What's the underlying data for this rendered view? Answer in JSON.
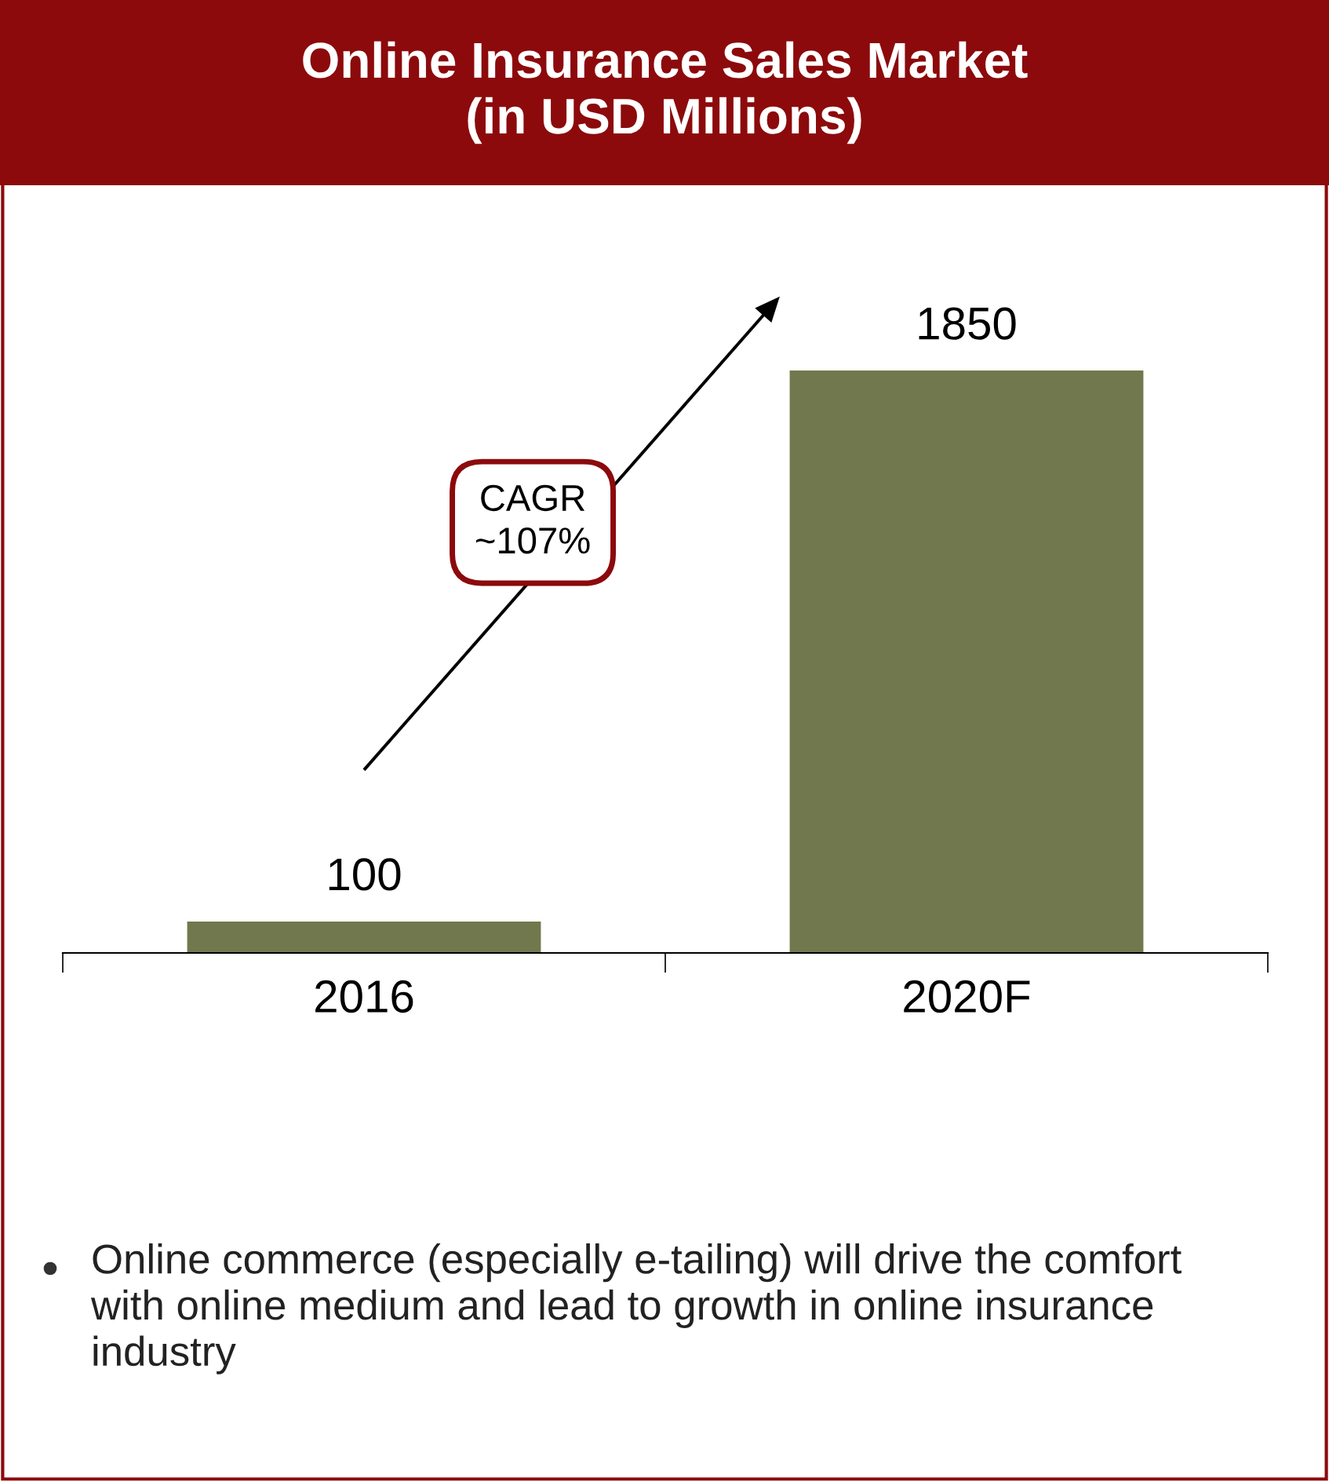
{
  "chart_data": {
    "type": "bar",
    "title": "Online Insurance Sales Market\n(in USD Millions)",
    "categories": [
      "2016",
      "2020F"
    ],
    "values": [
      100,
      1850
    ],
    "color": "#72784d",
    "data_labels": true,
    "grid": false,
    "legend": false,
    "annotations": [
      "CAGR\n~107%",
      "Online commerce (especially e-tailing) will drive the comfort with online medium and lead to growth in online insurance industry"
    ]
  }
}
